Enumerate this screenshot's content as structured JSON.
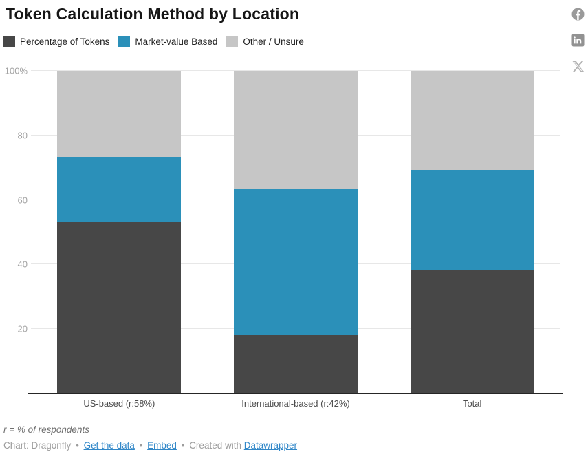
{
  "header": {
    "title": "Token Calculation Method by Location"
  },
  "social": {
    "icons": [
      {
        "name": "facebook-share-icon",
        "glyph": "f",
        "color": "#9a9a9a"
      },
      {
        "name": "linkedin-share-icon",
        "glyph": "in",
        "color": "#929292"
      },
      {
        "name": "x-share-icon",
        "glyph": "X",
        "color": "#b3b3b3"
      }
    ]
  },
  "chart_data": {
    "type": "bar",
    "variant": "stacked-column",
    "title": "Token Calculation Method by Location",
    "categories": [
      "US-based (r:58%)",
      "International-based (r:42%)",
      "Total"
    ],
    "series": [
      {
        "name": "Percentage of Tokens",
        "color": "#474747",
        "values": [
          53.3,
          18.2,
          38.5
        ]
      },
      {
        "name": "Market-value Based",
        "color": "#2b90b9",
        "values": [
          20.0,
          45.5,
          30.8
        ]
      },
      {
        "name": "Other / Unsure",
        "color": "#c6c6c6",
        "values": [
          26.7,
          36.4,
          30.8
        ]
      }
    ],
    "xlabel": "",
    "ylabel": "",
    "ylim": [
      0,
      100
    ],
    "yticks": [
      {
        "label": "100%",
        "value": 100
      },
      {
        "label": "80",
        "value": 80
      },
      {
        "label": "60",
        "value": 60
      },
      {
        "label": "40",
        "value": 40
      },
      {
        "label": "20",
        "value": 20
      }
    ],
    "grid": true,
    "legend_position": "top-left"
  },
  "footer": {
    "footnote": "r = % of respondents",
    "byline_prefix": "Chart: Dragonfly",
    "separator": "•",
    "links": [
      "Get the data",
      "Embed"
    ],
    "created_with": "Created with",
    "created_with_link": "Datawrapper"
  }
}
